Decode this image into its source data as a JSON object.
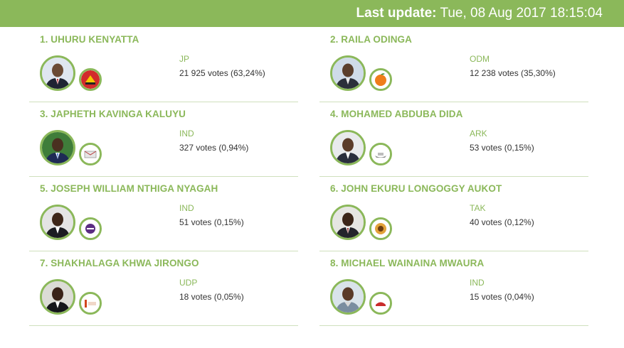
{
  "header": {
    "label": "Last update:",
    "value": "Tue, 08 Aug 2017 18:15:04"
  },
  "colors": {
    "accent": "#8bb85a",
    "text": "#333333",
    "divider": "#cfe0bd"
  },
  "candidates": [
    {
      "name": "1. UHURU KENYATTA",
      "party": "JP",
      "votes": "21 925 votes (63,24%)",
      "logo_icon": "jubilee-party-logo-icon"
    },
    {
      "name": "2. RAILA ODINGA",
      "party": "ODM",
      "votes": "12 238 votes (35,30%)",
      "logo_icon": "orange-logo-icon"
    },
    {
      "name": "3. JAPHETH KAVINGA KALUYU",
      "party": "IND",
      "votes": "327 votes (0,94%)",
      "logo_icon": "independent-symbol-icon"
    },
    {
      "name": "4. MOHAMED ABDUBA DIDA",
      "party": "ARK",
      "votes": "53 votes (0,15%)",
      "logo_icon": "ark-symbol-icon"
    },
    {
      "name": "5. JOSEPH WILLIAM NTHIGA NYAGAH",
      "party": "IND",
      "votes": "51 votes (0,15%)",
      "logo_icon": "independent-symbol-icon"
    },
    {
      "name": "6. JOHN EKURU LONGOGGY AUKOT",
      "party": "TAK",
      "votes": "40 votes (0,12%)",
      "logo_icon": "tak-emblem-icon"
    },
    {
      "name": "7. SHAKHALAGA KHWA JIRONGO",
      "party": "UDP",
      "votes": "18 votes (0,05%)",
      "logo_icon": "udp-logo-icon"
    },
    {
      "name": "8. MICHAEL WAINAINA MWAURA",
      "party": "IND",
      "votes": "15 votes (0,04%)",
      "logo_icon": "independent-symbol-icon"
    }
  ]
}
